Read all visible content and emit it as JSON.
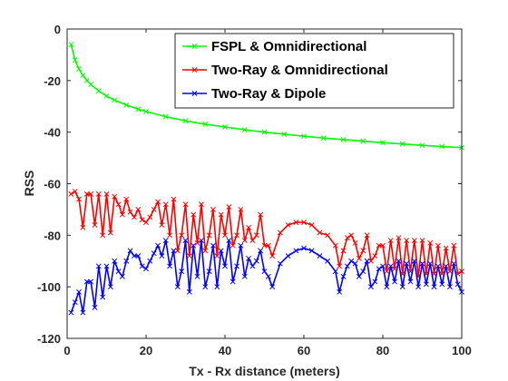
{
  "chart_data": {
    "type": "line",
    "title": "",
    "xlabel": "Tx - Rx distance (meters)",
    "ylabel": "RSS",
    "xlim": [
      0,
      100
    ],
    "ylim": [
      -120,
      0
    ],
    "xticks": [
      0,
      20,
      40,
      60,
      80,
      100
    ],
    "yticks": [
      0,
      -20,
      -40,
      -60,
      -80,
      -100,
      -120
    ],
    "xtick_labels": [
      "0",
      "20",
      "40",
      "60",
      "80",
      "100"
    ],
    "ytick_labels": [
      "0",
      "-20",
      "-40",
      "-60",
      "-80",
      "-100",
      "-120"
    ],
    "grid": false,
    "legend_position": "top-right",
    "marker": "x",
    "series": [
      {
        "name": "FSPL & Omnidirectional",
        "color": "#00ff00",
        "x": [
          1,
          2,
          3,
          4,
          5,
          6,
          8,
          10,
          12,
          15,
          18,
          20,
          25,
          30,
          35,
          40,
          45,
          50,
          55,
          60,
          65,
          70,
          75,
          80,
          85,
          90,
          95,
          100
        ],
        "y": [
          -6.0,
          -12.0,
          -15.5,
          -18.0,
          -20.0,
          -21.5,
          -24.0,
          -26.0,
          -27.6,
          -29.5,
          -31.1,
          -32.0,
          -34.0,
          -35.6,
          -36.9,
          -38.0,
          -39.1,
          -40.0,
          -40.8,
          -41.6,
          -42.3,
          -42.9,
          -43.5,
          -44.1,
          -44.6,
          -45.1,
          -45.6,
          -46.0
        ]
      },
      {
        "name": "Two-Ray & Omnidirectional",
        "color": "#ff0000",
        "x": [
          1,
          2,
          3,
          4,
          5,
          6,
          7,
          8,
          9,
          10,
          11,
          12,
          13,
          14,
          15,
          16,
          17,
          18,
          19,
          20,
          21,
          22,
          23,
          24,
          25,
          26,
          27,
          28,
          29,
          30,
          31,
          32,
          33,
          34,
          35,
          36,
          37,
          38,
          39,
          40,
          41,
          42,
          43,
          44,
          45,
          46,
          47,
          48,
          49,
          50,
          51,
          52,
          54,
          56,
          58,
          60,
          62,
          64,
          66,
          68,
          69,
          70,
          71,
          72,
          73,
          74,
          75,
          76,
          77,
          78,
          79,
          80,
          81,
          82,
          83,
          84,
          85,
          86,
          87,
          88,
          89,
          90,
          91,
          92,
          93,
          94,
          95,
          96,
          97,
          98,
          99,
          100
        ],
        "y": [
          -64,
          -63,
          -66,
          -77,
          -64,
          -64,
          -76,
          -64,
          -80,
          -64,
          -79,
          -65,
          -68,
          -72,
          -66,
          -71,
          -73,
          -70,
          -74,
          -75,
          -73,
          -70,
          -67,
          -76,
          -68,
          -80,
          -66,
          -86,
          -80,
          -68,
          -88,
          -72,
          -83,
          -68,
          -86,
          -80,
          -70,
          -88,
          -72,
          -80,
          -69,
          -84,
          -80,
          -70,
          -82,
          -77,
          -82,
          -80,
          -72,
          -84,
          -84,
          -88,
          -79,
          -76,
          -75,
          -75,
          -76,
          -79,
          -80,
          -84,
          -92,
          -86,
          -81,
          -80,
          -83,
          -89,
          -86,
          -80,
          -90,
          -88,
          -84,
          -84,
          -94,
          -82,
          -93,
          -81,
          -95,
          -82,
          -94,
          -82,
          -96,
          -82,
          -95,
          -83,
          -95,
          -84,
          -95,
          -85,
          -94,
          -84,
          -95,
          -94
        ]
      },
      {
        "name": "Two-Ray & Dipole",
        "color": "#0000ff",
        "x": [
          1,
          2,
          3,
          4,
          5,
          6,
          7,
          8,
          9,
          10,
          11,
          12,
          13,
          14,
          15,
          16,
          17,
          18,
          19,
          20,
          21,
          22,
          23,
          24,
          25,
          26,
          27,
          28,
          29,
          30,
          31,
          32,
          33,
          34,
          35,
          36,
          37,
          38,
          39,
          40,
          41,
          42,
          43,
          44,
          45,
          46,
          47,
          48,
          49,
          50,
          51,
          52,
          54,
          56,
          58,
          60,
          62,
          64,
          66,
          68,
          69,
          70,
          71,
          72,
          73,
          74,
          75,
          76,
          77,
          78,
          79,
          80,
          81,
          82,
          83,
          84,
          85,
          86,
          87,
          88,
          89,
          90,
          91,
          92,
          93,
          94,
          95,
          96,
          97,
          98,
          99,
          100
        ],
        "y": [
          -110,
          -106,
          -102,
          -110,
          -98,
          -98,
          -108,
          -92,
          -104,
          -92,
          -100,
          -90,
          -94,
          -96,
          -90,
          -86,
          -88,
          -88,
          -92,
          -93,
          -90,
          -87,
          -84,
          -88,
          -82,
          -92,
          -86,
          -100,
          -94,
          -82,
          -102,
          -84,
          -96,
          -82,
          -100,
          -94,
          -84,
          -100,
          -86,
          -92,
          -82,
          -98,
          -92,
          -84,
          -96,
          -89,
          -92,
          -90,
          -86,
          -94,
          -96,
          -100,
          -91,
          -88,
          -86,
          -85,
          -86,
          -88,
          -90,
          -94,
          -102,
          -96,
          -92,
          -90,
          -91,
          -96,
          -94,
          -90,
          -100,
          -98,
          -93,
          -92,
          -100,
          -92,
          -98,
          -90,
          -100,
          -91,
          -98,
          -90,
          -100,
          -91,
          -99,
          -91,
          -100,
          -92,
          -99,
          -92,
          -100,
          -91,
          -99,
          -102
        ]
      }
    ]
  }
}
